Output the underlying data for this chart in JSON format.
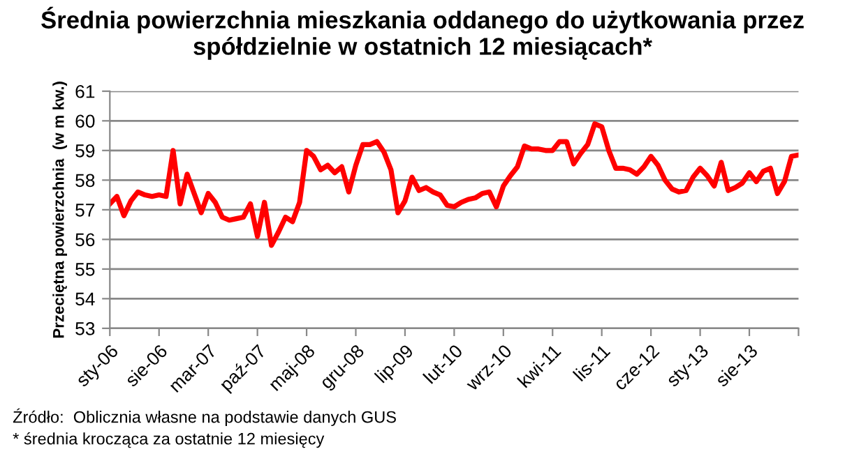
{
  "chart_data": {
    "type": "line",
    "title": "Średnia powierzchnia mieszkania oddanego do użytkowania przez\nspółdzielnie w ostatnich 12 miesiącach*",
    "ylabel": "Przeciętna powierzchnia  (w m kw.)",
    "categories": [
      "sty-06",
      null,
      null,
      null,
      null,
      null,
      null,
      "sie-06",
      null,
      null,
      null,
      null,
      null,
      null,
      "mar-07",
      null,
      null,
      null,
      null,
      null,
      null,
      "paź-07",
      null,
      null,
      null,
      null,
      null,
      null,
      "maj-08",
      null,
      null,
      null,
      null,
      null,
      null,
      "gru-08",
      null,
      null,
      null,
      null,
      null,
      null,
      "lip-09",
      null,
      null,
      null,
      null,
      null,
      null,
      "lut-10",
      null,
      null,
      null,
      null,
      null,
      null,
      "wrz-10",
      null,
      null,
      null,
      null,
      null,
      null,
      "kwi-11",
      null,
      null,
      null,
      null,
      null,
      null,
      "lis-11",
      null,
      null,
      null,
      null,
      null,
      null,
      "cze-12",
      null,
      null,
      null,
      null,
      null,
      null,
      "sty-13",
      null,
      null,
      null,
      null,
      null,
      null,
      "sie-13",
      null,
      null,
      null,
      null,
      null,
      null,
      null
    ],
    "series": [
      {
        "color": "#ff0000",
        "values": [
          57.2,
          57.45,
          56.8,
          57.3,
          57.6,
          57.5,
          57.45,
          57.5,
          57.45,
          59.0,
          57.2,
          58.2,
          57.55,
          56.9,
          57.55,
          57.25,
          56.75,
          56.65,
          56.7,
          56.75,
          57.2,
          56.1,
          57.25,
          55.8,
          56.25,
          56.75,
          56.6,
          57.25,
          59.0,
          58.8,
          58.35,
          58.5,
          58.25,
          58.45,
          57.6,
          58.5,
          59.2,
          59.2,
          59.3,
          58.95,
          58.35,
          56.9,
          57.3,
          58.1,
          57.65,
          57.75,
          57.6,
          57.5,
          57.15,
          57.1,
          57.25,
          57.35,
          57.4,
          57.55,
          57.6,
          57.1,
          57.8,
          58.15,
          58.45,
          59.15,
          59.05,
          59.05,
          59.0,
          59.0,
          59.3,
          59.3,
          58.55,
          58.9,
          59.2,
          59.9,
          59.8,
          59.0,
          58.4,
          58.4,
          58.35,
          58.2,
          58.45,
          58.8,
          58.5,
          58.0,
          57.7,
          57.6,
          57.65,
          58.1,
          58.4,
          58.15,
          57.8,
          58.6,
          57.65,
          57.75,
          57.9,
          58.25,
          57.95,
          58.3,
          58.4,
          57.55,
          57.95,
          58.8,
          58.85
        ]
      }
    ],
    "ylim": [
      53,
      61
    ],
    "yticks": [
      53,
      54,
      55,
      56,
      57,
      58,
      59,
      60,
      61
    ],
    "grid": "y",
    "marker": "none",
    "line_style": "solid",
    "legend": false,
    "annotations": [
      "Źródło:  Oblicznia własne na podstawie danych GUS",
      "* średnia krocząca za ostatnie 12 miesięcy"
    ]
  }
}
